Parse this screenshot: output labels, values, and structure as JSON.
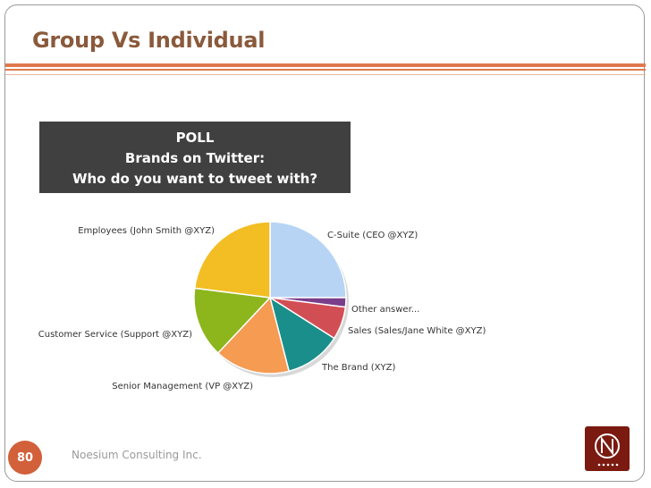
{
  "slide": {
    "title": "Group Vs Individual",
    "page_number": "80",
    "footer": "Noesium Consulting Inc."
  },
  "poll": {
    "line1": "POLL",
    "line2": "Brands on Twitter:",
    "line3": "Who do you want to tweet with?"
  },
  "colors": {
    "accent": "#e07a4e",
    "title": "#8a5a3c",
    "badge": "#d2603a",
    "poll_bg": "#404040",
    "logo_bg": "#7a1a10"
  },
  "chart_data": {
    "type": "pie",
    "title": "",
    "slices": [
      {
        "label": "C-Suite (CEO @XYZ)",
        "value": 25,
        "color": "#b7d4f5"
      },
      {
        "label": "Other answer...",
        "value": 2,
        "color": "#7a3e8a"
      },
      {
        "label": "Sales (Sales/Jane White @XYZ)",
        "value": 7,
        "color": "#d24e55"
      },
      {
        "label": "The Brand (XYZ)",
        "value": 12,
        "color": "#1a8e8a"
      },
      {
        "label": "Senior Management (VP @XYZ)",
        "value": 16,
        "color": "#f59b52"
      },
      {
        "label": "Customer Service (Support @XYZ)",
        "value": 15,
        "color": "#8cb61c"
      },
      {
        "label": "Employees (John Smith @XYZ)",
        "value": 23,
        "color": "#f3be24"
      }
    ]
  }
}
